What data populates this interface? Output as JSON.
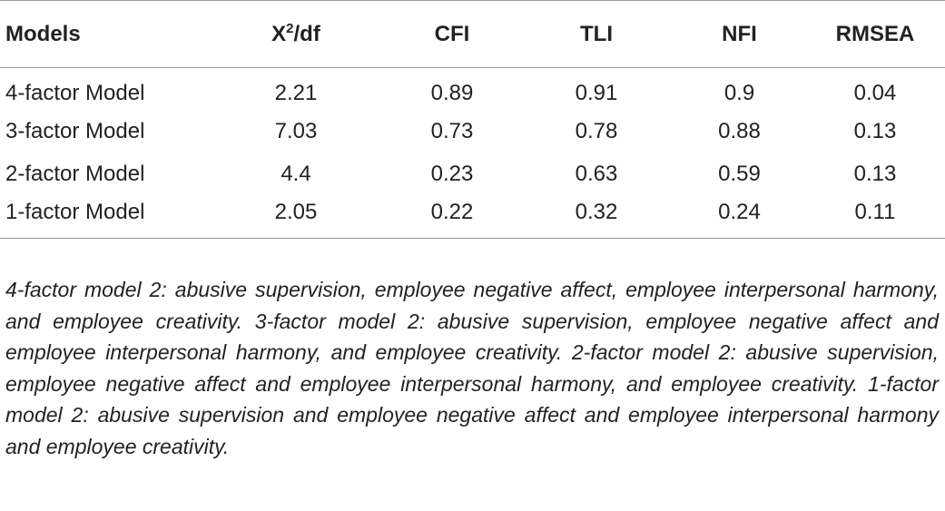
{
  "table": {
    "headers": {
      "models": "Models",
      "x2_base": "X",
      "x2_sup": "2",
      "x2_suffix": "/df",
      "cfi": "CFI",
      "tli": "TLI",
      "nfi": "NFI",
      "rmsea": "RMSEA"
    },
    "rows": [
      {
        "model": "4-factor Model",
        "x2df": "2.21",
        "cfi": "0.89",
        "tli": "0.91",
        "nfi": "0.9",
        "rmsea": "0.04"
      },
      {
        "model": "3-factor Model",
        "x2df": "7.03",
        "cfi": "0.73",
        "tli": "0.78",
        "nfi": "0.88",
        "rmsea": "0.13"
      },
      {
        "model": "2-factor Model",
        "x2df": "4.4",
        "cfi": "0.23",
        "tli": "0.63",
        "nfi": "0.59",
        "rmsea": "0.13"
      },
      {
        "model": "1-factor Model",
        "x2df": "2.05",
        "cfi": "0.22",
        "tli": "0.32",
        "nfi": "0.24",
        "rmsea": "0.11"
      }
    ]
  },
  "note": "4-factor model 2: abusive supervision, employee negative affect, employee interpersonal harmony, and employee creativity. 3-factor model 2: abusive supervi­sion, employee negative affect and employee interpersonal harmony, and employee creativity. 2-factor model 2: abusive supervision, employee negative affect and employee interpersonal harmony, and employee creativity. 1-factor model 2: abusive supervision and employee negative affect and employee interpersonal harmony and employee creativity."
}
